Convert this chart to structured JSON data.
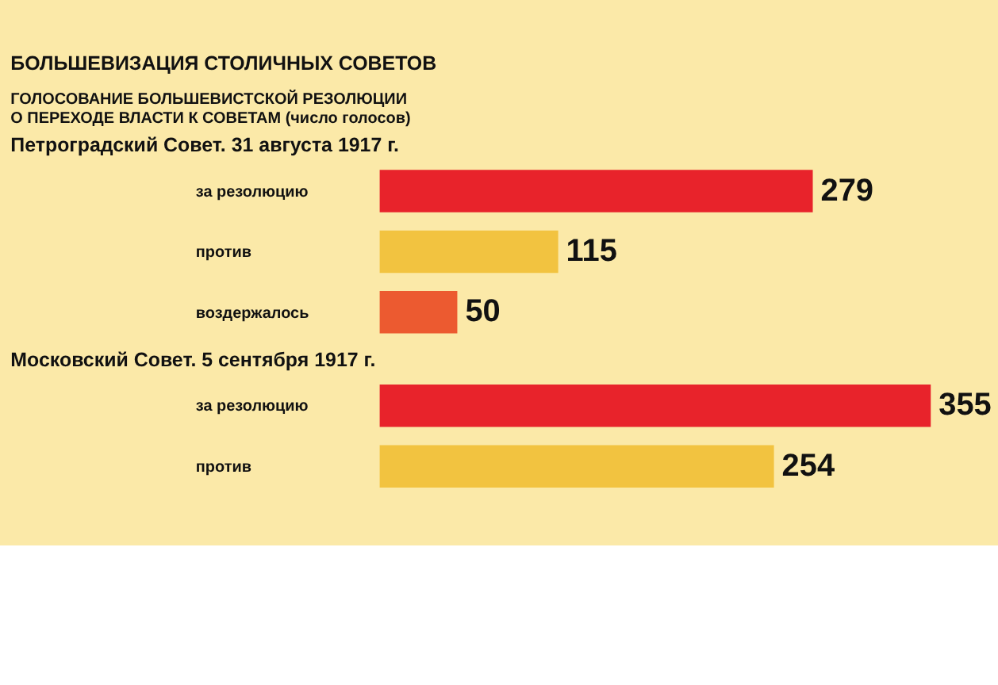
{
  "chart_data": [
    {
      "type": "other",
      "title": "БОЛЬШЕВИЗАЦИЯ СТОЛИЧНЫХ СОВЕТОВ",
      "subtitle": "ГОЛОСОВАНИЕ БОЛЬШЕВИСТСКОЙ РЕЗОЛЮЦИИ\nО ПЕРЕХОДЕ ВЛАСТИ К СОВЕТАМ  (число голосов)"
    },
    {
      "type": "bar",
      "orientation": "horizontal",
      "title": "Петроградский Совет. 31 августа 1917 г.",
      "categories": [
        "за резолюцию",
        "против",
        "воздержалось"
      ],
      "values": [
        279,
        115,
        50
      ],
      "colors": [
        "#e8232b",
        "#f2c340",
        "#ec5a30"
      ],
      "data_labels": true
    },
    {
      "type": "bar",
      "orientation": "horizontal",
      "title": "Московский Совет. 5 сентября 1917 г.",
      "categories": [
        "за резолюцию",
        "против"
      ],
      "values": [
        355,
        254
      ],
      "colors": [
        "#e8232b",
        "#f2c340"
      ],
      "data_labels": true
    }
  ]
}
